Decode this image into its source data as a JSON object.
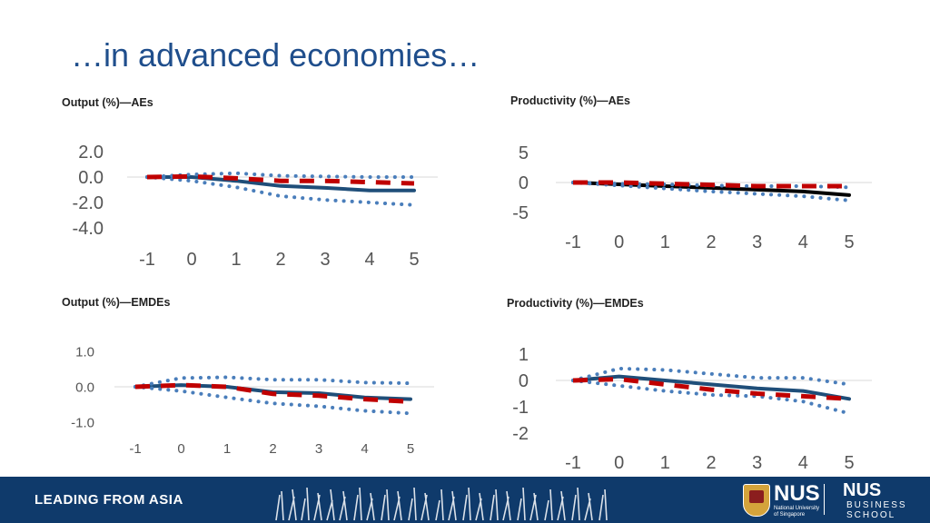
{
  "slide": {
    "title": "…in advanced economies…"
  },
  "footer": {
    "tagline": "LEADING FROM ASIA",
    "logo1_main": "NUS",
    "logo1_sub_line1": "National University",
    "logo1_sub_line2": "of Singapore",
    "logo2_main": "NUS",
    "logo2_sub_line1": "BUSINESS",
    "logo2_sub_line2": "SCHOOL"
  },
  "colors": {
    "solid": "#1f4e79",
    "dotted": "#4a7ebb",
    "dashed": "#c00000",
    "black": "#000000"
  },
  "chart_data": [
    {
      "type": "line",
      "title": "Output (%)—AEs",
      "x": [
        -1,
        0,
        1,
        2,
        3,
        4,
        5
      ],
      "yticks": [
        "2.0",
        "0.0",
        "-2.0",
        "-4.0"
      ],
      "ylim": [
        -4,
        2
      ],
      "series": [
        {
          "style": "solid",
          "color": "#1f4e79",
          "values": [
            0,
            0,
            -0.3,
            -0.7,
            -0.85,
            -1.05,
            -1.05
          ]
        },
        {
          "style": "dotted",
          "color": "#4a7ebb",
          "values": [
            0,
            0.2,
            0.3,
            0.1,
            0.05,
            0,
            0
          ]
        },
        {
          "style": "dotted",
          "color": "#4a7ebb",
          "values": [
            0,
            -0.3,
            -0.8,
            -1.5,
            -1.8,
            -2.0,
            -2.2
          ]
        },
        {
          "style": "dashed",
          "color": "#c00000",
          "values": [
            0,
            0.05,
            -0.1,
            -0.3,
            -0.3,
            -0.4,
            -0.5
          ]
        }
      ]
    },
    {
      "type": "line",
      "title": "Productivity (%)—AEs",
      "x": [
        -1,
        0,
        1,
        2,
        3,
        4,
        5
      ],
      "yticks": [
        "5",
        "0",
        "-5"
      ],
      "ylim": [
        -5,
        5
      ],
      "series": [
        {
          "style": "solid",
          "color": "#000000",
          "values": [
            0,
            -0.3,
            -0.6,
            -0.9,
            -1.2,
            -1.5,
            -2.1
          ]
        },
        {
          "style": "dotted",
          "color": "#4a7ebb",
          "values": [
            0,
            -0.5,
            -1.0,
            -1.5,
            -1.9,
            -2.3,
            -3.0
          ]
        },
        {
          "style": "dotted",
          "color": "#4a7ebb",
          "values": [
            0,
            -0.2,
            -0.3,
            -0.5,
            -0.6,
            -0.6,
            -0.8
          ]
        },
        {
          "style": "dashed",
          "color": "#c00000",
          "values": [
            0,
            0,
            -0.2,
            -0.4,
            -0.6,
            -0.6,
            -0.6
          ]
        }
      ]
    },
    {
      "type": "line",
      "title": "Output (%)—EMDEs",
      "x": [
        -1,
        0,
        1,
        2,
        3,
        4,
        5
      ],
      "yticks": [
        "1.0",
        "0.0",
        "-1.0"
      ],
      "ylim": [
        -1,
        1
      ],
      "series": [
        {
          "style": "solid",
          "color": "#1f4e79",
          "values": [
            0,
            0.05,
            0,
            -0.15,
            -0.18,
            -0.3,
            -0.35
          ]
        },
        {
          "style": "dotted",
          "color": "#4a7ebb",
          "values": [
            0,
            0.25,
            0.27,
            0.2,
            0.2,
            0.12,
            0.1
          ]
        },
        {
          "style": "dotted",
          "color": "#4a7ebb",
          "values": [
            0,
            -0.12,
            -0.3,
            -0.47,
            -0.55,
            -0.68,
            -0.75
          ]
        },
        {
          "style": "dashed",
          "color": "#c00000",
          "values": [
            0,
            0.05,
            0,
            -0.2,
            -0.25,
            -0.35,
            -0.42
          ]
        }
      ]
    },
    {
      "type": "line",
      "title": "Productivity (%)—EMDEs",
      "x": [
        -1,
        0,
        1,
        2,
        3,
        4,
        5
      ],
      "yticks": [
        "1",
        "0",
        "-1",
        "-2"
      ],
      "ylim": [
        -2,
        1
      ],
      "series": [
        {
          "style": "solid",
          "color": "#1f4e79",
          "values": [
            0,
            0.15,
            0,
            -0.15,
            -0.3,
            -0.4,
            -0.7
          ]
        },
        {
          "style": "dotted",
          "color": "#4a7ebb",
          "values": [
            0,
            0.45,
            0.4,
            0.25,
            0.1,
            0.1,
            -0.15
          ]
        },
        {
          "style": "dotted",
          "color": "#4a7ebb",
          "values": [
            0,
            -0.2,
            -0.4,
            -0.55,
            -0.6,
            -0.8,
            -1.25
          ]
        },
        {
          "style": "dashed",
          "color": "#c00000",
          "values": [
            0,
            0.05,
            -0.15,
            -0.35,
            -0.5,
            -0.6,
            -0.7
          ]
        }
      ]
    }
  ]
}
